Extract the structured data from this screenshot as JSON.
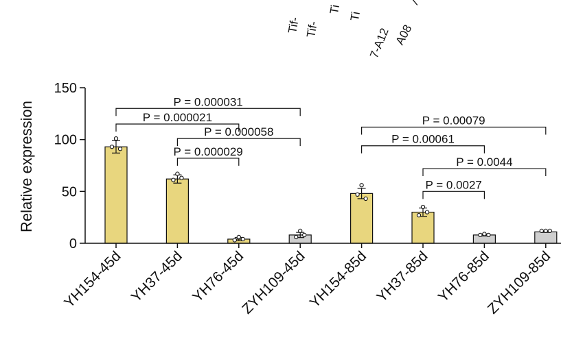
{
  "chart_data": {
    "type": "bar",
    "ylabel": "Relative expression",
    "ylim": [
      0,
      150
    ],
    "yticks": [
      0,
      50,
      100,
      150
    ],
    "categories": [
      "YH154-45d",
      "YH37-45d",
      "YH76-45d",
      "ZYH109-45d",
      "YH154-85d",
      "YH37-85d",
      "YH76-85d",
      "ZYH109-85d"
    ],
    "values": [
      93,
      62,
      4,
      8,
      48,
      30,
      8,
      11
    ],
    "errors": [
      6,
      4,
      1.5,
      2.5,
      5,
      4,
      1,
      0.5
    ],
    "points": [
      [
        101,
        93,
        91
      ],
      [
        67,
        61,
        63
      ],
      [
        6,
        3,
        4
      ],
      [
        12,
        6,
        8
      ],
      [
        56,
        47,
        43
      ],
      [
        35,
        27,
        30
      ],
      [
        9,
        8,
        8
      ],
      [
        12,
        12,
        12
      ]
    ],
    "bar_colors": [
      "#e8d67e",
      "#e8d67e",
      "#e8d67e",
      "#cfcfcf",
      "#e8d67e",
      "#e8d67e",
      "#cfcfcf",
      "#cfcfcf"
    ],
    "comparisons": [
      {
        "from": 0,
        "to": 3,
        "y": 130,
        "label": "P = 0.000031"
      },
      {
        "from": 0,
        "to": 2,
        "y": 115,
        "label": "P = 0.000021"
      },
      {
        "from": 1,
        "to": 3,
        "y": 101,
        "label": "P = 0.000058"
      },
      {
        "from": 1,
        "to": 2,
        "y": 82,
        "label": "P = 0.000029"
      },
      {
        "from": 4,
        "to": 7,
        "y": 112,
        "label": "P = 0.00079"
      },
      {
        "from": 4,
        "to": 6,
        "y": 94,
        "label": "P = 0.00061"
      },
      {
        "from": 5,
        "to": 7,
        "y": 72,
        "label": "P = 0.0044"
      },
      {
        "from": 5,
        "to": 6,
        "y": 50,
        "label": "P = 0.0027"
      }
    ],
    "top_fragments": [
      "Tif-",
      "Tif-",
      "Ti",
      "Ti",
      "7-A12",
      "A08",
      "/"
    ]
  }
}
